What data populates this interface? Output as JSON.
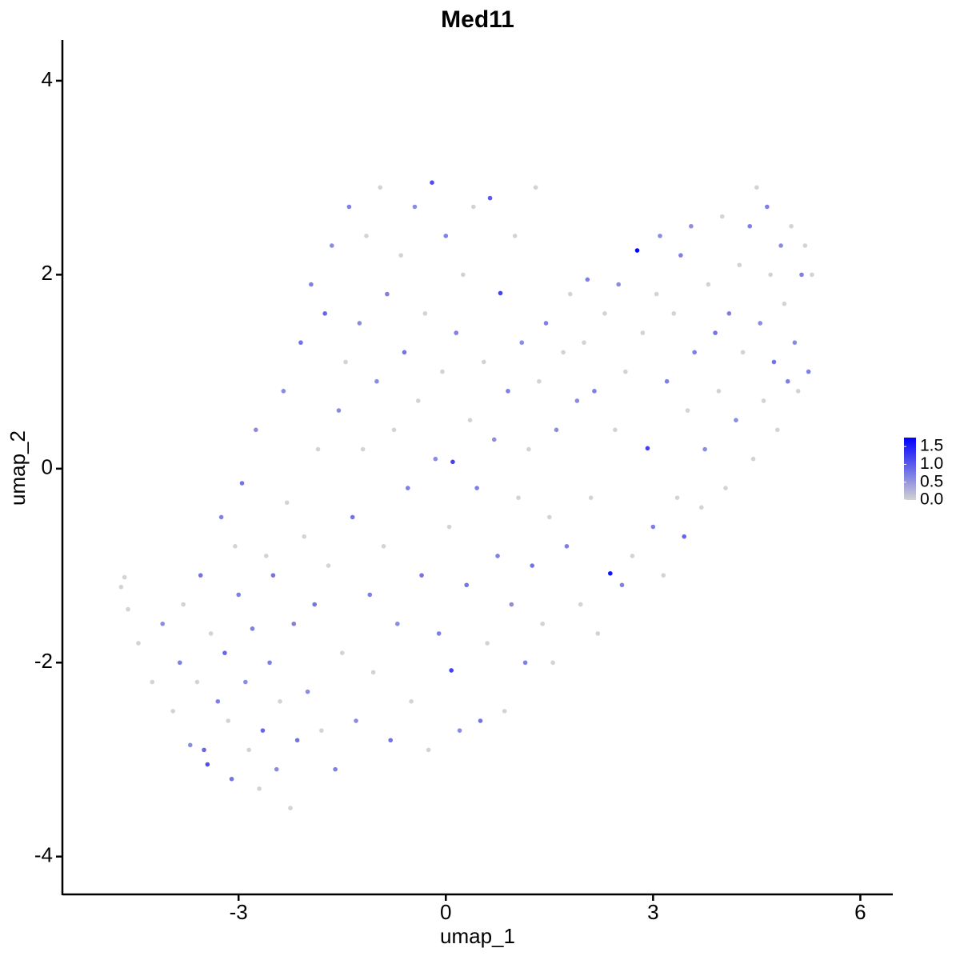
{
  "chart_data": {
    "type": "scatter",
    "title": "Med11",
    "x_label": "umap_1",
    "y_label": "umap_2",
    "xlim": [
      -5.55,
      6.47
    ],
    "ylim": [
      -4.39,
      4.42
    ],
    "xticks": [
      -3,
      0,
      3,
      6
    ],
    "yticks": [
      -4,
      -2,
      0,
      2,
      4
    ],
    "grid": false,
    "color_low": "#d3d3d3",
    "color_high": "#0000ff",
    "colorlim": [
      0,
      1.75
    ],
    "color_ticks": [
      {
        "value": 0,
        "label": "0.0"
      },
      0.5,
      {
        "value": 1,
        "label": "1.0"
      },
      1.5
    ],
    "x": [
      -4.7,
      -4.65,
      -4.6,
      -4.45,
      -4.25,
      -4.1,
      -3.95,
      -3.85,
      -3.8,
      -3.7,
      -3.6,
      -3.55,
      -3.5,
      -3.45,
      -3.4,
      -3.3,
      -3.25,
      -3.2,
      -3.15,
      -3.1,
      -3.05,
      -3.0,
      -2.95,
      -2.9,
      -2.85,
      -2.8,
      -2.75,
      -2.7,
      -2.65,
      -2.6,
      -2.55,
      -2.5,
      -2.45,
      -2.4,
      -2.35,
      -2.3,
      -2.25,
      -2.2,
      -2.15,
      -2.1,
      -2.05,
      -2.0,
      -1.95,
      -1.9,
      -1.85,
      -1.8,
      -1.75,
      -1.7,
      -1.65,
      -1.6,
      -1.55,
      -1.5,
      -1.45,
      -1.4,
      -1.35,
      -1.3,
      -1.25,
      -1.2,
      -1.15,
      -1.1,
      -1.05,
      -1.0,
      -0.95,
      -0.9,
      -0.85,
      -0.8,
      -0.75,
      -0.7,
      -0.65,
      -0.6,
      -0.55,
      -0.5,
      -0.45,
      -0.4,
      -0.35,
      -0.3,
      -0.25,
      -0.2,
      -0.15,
      -0.1,
      -0.05,
      0.0,
      0.05,
      0.08,
      0.1,
      0.15,
      0.2,
      0.25,
      0.3,
      0.35,
      0.4,
      0.45,
      0.5,
      0.55,
      0.6,
      0.64,
      0.7,
      0.75,
      0.79,
      0.85,
      0.9,
      0.95,
      1.0,
      1.05,
      1.1,
      1.15,
      1.2,
      1.25,
      1.3,
      1.35,
      1.4,
      1.45,
      1.5,
      1.55,
      1.6,
      1.7,
      1.75,
      1.8,
      1.9,
      1.95,
      2.0,
      2.05,
      2.1,
      2.15,
      2.2,
      2.3,
      2.38,
      2.45,
      2.5,
      2.55,
      2.6,
      2.7,
      2.77,
      2.85,
      2.92,
      3.0,
      3.05,
      3.1,
      3.15,
      3.2,
      3.3,
      3.35,
      3.4,
      3.45,
      3.5,
      3.55,
      3.6,
      3.7,
      3.75,
      3.8,
      3.9,
      3.95,
      4.0,
      4.05,
      4.1,
      4.2,
      4.25,
      4.3,
      4.4,
      4.45,
      4.5,
      4.55,
      4.6,
      4.65,
      4.7,
      4.75,
      4.8,
      4.85,
      4.9,
      4.95,
      5.0,
      5.05,
      5.1,
      5.15,
      5.2,
      5.25,
      5.3
    ],
    "y": [
      -1.22,
      -1.12,
      -1.45,
      -1.8,
      -2.2,
      -1.6,
      -2.5,
      -2.0,
      -1.4,
      -2.85,
      -2.2,
      -1.1,
      -2.9,
      -3.05,
      -1.7,
      -2.4,
      -0.5,
      -1.9,
      -2.6,
      -3.2,
      -0.8,
      -1.3,
      -0.15,
      -2.2,
      -2.9,
      -1.65,
      0.4,
      -3.3,
      -2.7,
      -0.9,
      -2.0,
      -1.1,
      -3.1,
      -2.4,
      0.8,
      -0.35,
      -3.5,
      -1.6,
      -2.8,
      1.3,
      -0.7,
      -2.3,
      1.9,
      -1.4,
      0.2,
      -2.7,
      1.6,
      -1.0,
      2.3,
      -3.1,
      0.6,
      -1.9,
      1.1,
      2.7,
      -0.5,
      -2.6,
      1.5,
      0.2,
      2.4,
      -1.3,
      -2.1,
      0.9,
      2.9,
      -0.8,
      1.8,
      -2.8,
      0.4,
      -1.6,
      2.2,
      1.2,
      -0.2,
      -2.4,
      2.7,
      0.7,
      -1.1,
      1.6,
      -2.9,
      2.95,
      0.1,
      -1.7,
      1.0,
      2.4,
      -0.6,
      -2.08,
      0.07,
      1.4,
      -2.7,
      2.0,
      -1.2,
      0.5,
      2.7,
      -0.2,
      -2.6,
      1.1,
      -1.8,
      2.79,
      0.3,
      -0.9,
      1.81,
      -2.5,
      0.8,
      -1.4,
      2.4,
      -0.3,
      1.3,
      -2.0,
      0.2,
      -1.0,
      2.9,
      0.9,
      -1.6,
      1.5,
      -0.5,
      -2.0,
      0.4,
      1.2,
      -0.8,
      1.8,
      0.7,
      -1.4,
      1.3,
      1.95,
      -0.3,
      0.8,
      -1.7,
      1.6,
      -1.08,
      0.4,
      1.9,
      -1.2,
      1.0,
      -0.9,
      2.25,
      1.4,
      0.21,
      -0.6,
      1.8,
      2.4,
      -1.1,
      0.9,
      1.6,
      -0.3,
      2.2,
      -0.7,
      0.6,
      2.5,
      1.2,
      -0.4,
      0.2,
      1.9,
      1.4,
      0.8,
      2.6,
      -0.2,
      1.6,
      0.5,
      2.1,
      1.2,
      2.5,
      0.1,
      2.9,
      1.5,
      0.7,
      2.7,
      2.0,
      1.1,
      0.4,
      2.3,
      1.7,
      0.9,
      2.5,
      1.3,
      0.8,
      2.0,
      2.3,
      1.0,
      2.0
    ],
    "values": [
      0,
      0,
      0,
      0,
      0,
      0.6,
      0,
      0.7,
      0,
      0.6,
      0,
      0.8,
      0.9,
      1.1,
      0,
      0.7,
      0.7,
      0.9,
      0,
      0.8,
      0,
      0.7,
      0.8,
      0.6,
      0,
      0.7,
      0.6,
      0,
      0.9,
      0,
      0.7,
      0.8,
      0.6,
      0,
      0.6,
      0,
      0,
      0.7,
      0.8,
      0.8,
      0,
      0.6,
      0.7,
      0.8,
      0,
      0,
      0.9,
      0,
      0.6,
      0.7,
      0.6,
      0,
      0,
      0.7,
      0.8,
      0.6,
      0.6,
      0,
      0,
      0.7,
      0,
      0.6,
      0,
      0,
      0.7,
      0.8,
      0,
      0.6,
      0,
      0.8,
      0.7,
      0,
      0.6,
      0,
      0.8,
      0,
      0,
      1.1,
      0.6,
      0.7,
      0,
      0.7,
      0,
      1.2,
      1.2,
      0.7,
      0.6,
      0,
      0.8,
      0,
      0,
      0.7,
      0.8,
      0,
      0,
      1.0,
      0.6,
      0.7,
      1.2,
      0,
      0.7,
      0.6,
      0,
      0,
      0.6,
      0.7,
      0,
      0.8,
      0,
      0,
      0,
      0.7,
      0,
      0,
      0.6,
      0,
      0.7,
      0,
      0.6,
      0,
      0,
      0.7,
      0,
      0.7,
      0,
      0,
      1.6,
      0,
      0.6,
      0.7,
      0,
      0,
      1.7,
      0,
      1.2,
      0.7,
      0,
      0.6,
      0,
      0.7,
      0,
      0,
      0.7,
      0.9,
      0,
      0.6,
      0.7,
      0,
      0.6,
      0,
      0.8,
      0,
      0,
      0,
      0.7,
      0.6,
      0,
      0,
      0.7,
      0,
      0,
      0.6,
      0,
      0.7,
      0,
      0.8,
      0,
      0.6,
      0,
      0.7,
      0,
      0.6,
      0,
      0.7,
      0,
      0.7,
      0
    ]
  }
}
